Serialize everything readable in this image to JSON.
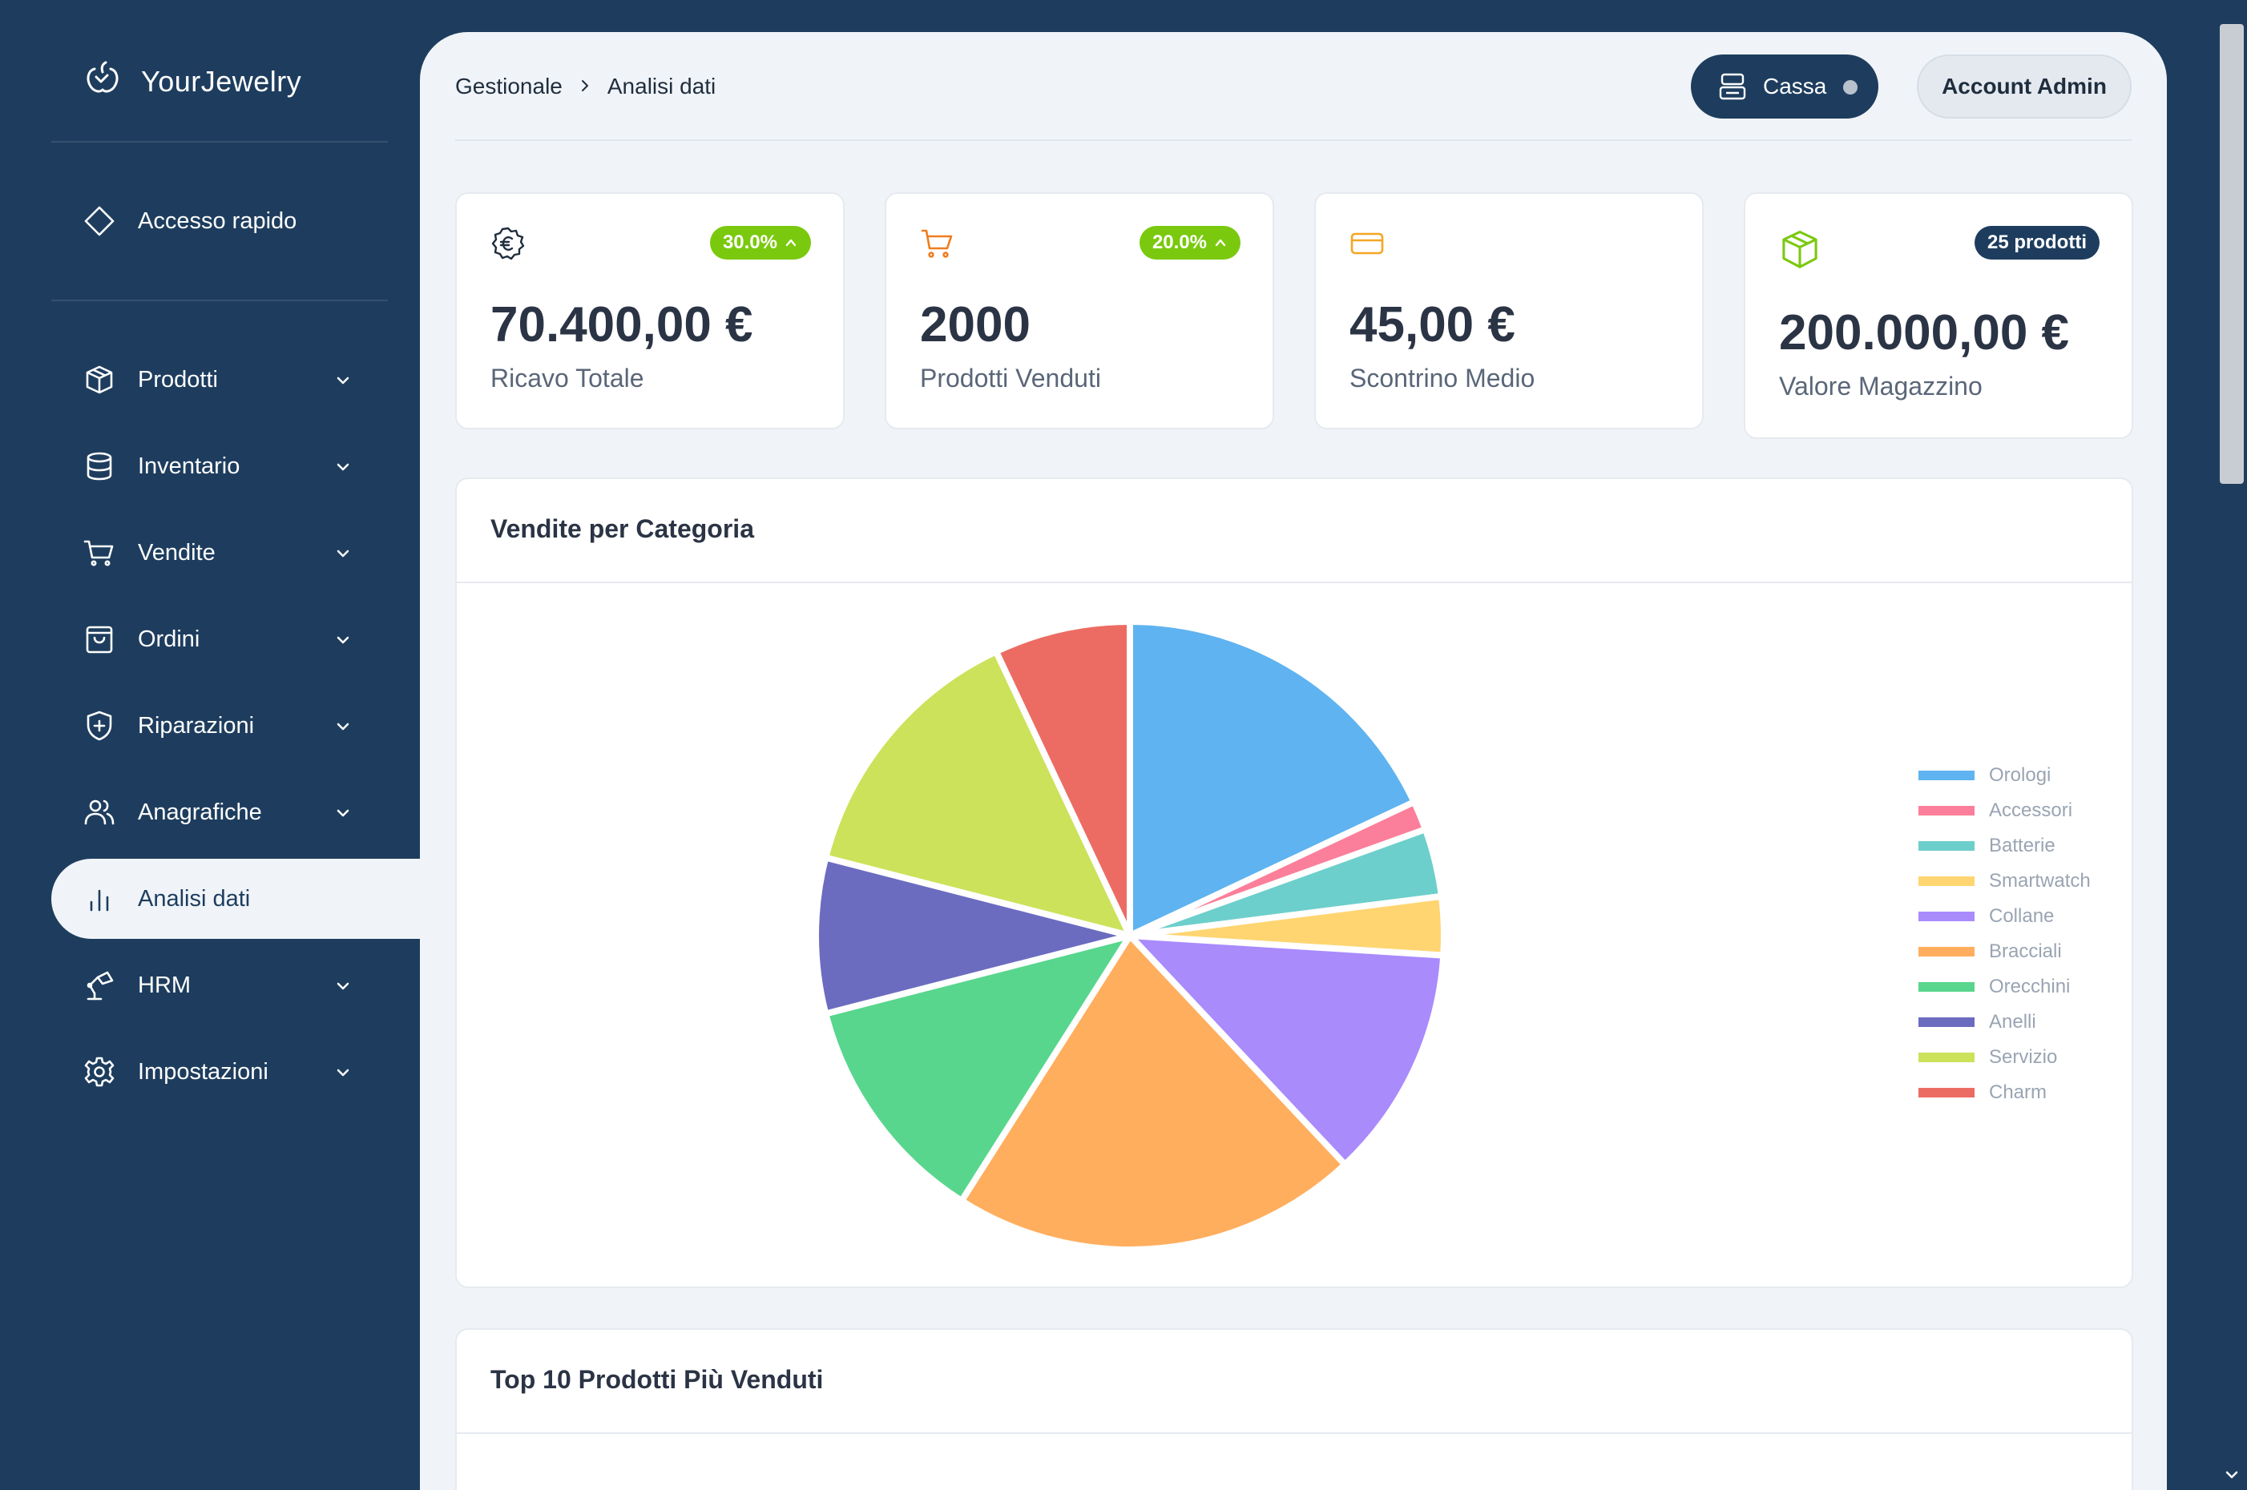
{
  "app": {
    "name": "YourJewelry"
  },
  "sidebar": {
    "quick_access": "Accesso rapido",
    "items": [
      {
        "label": "Prodotti",
        "icon": "package-icon",
        "has_submenu": true
      },
      {
        "label": "Inventario",
        "icon": "database-icon",
        "has_submenu": true
      },
      {
        "label": "Vendite",
        "icon": "cart-icon",
        "has_submenu": true
      },
      {
        "label": "Ordini",
        "icon": "bag-icon",
        "has_submenu": true
      },
      {
        "label": "Riparazioni",
        "icon": "shield-plus-icon",
        "has_submenu": true
      },
      {
        "label": "Anagrafiche",
        "icon": "users-icon",
        "has_submenu": true
      },
      {
        "label": "Analisi dati",
        "icon": "bar-chart-icon",
        "has_submenu": false,
        "active": true
      },
      {
        "label": "HRM",
        "icon": "desk-lamp-icon",
        "has_submenu": true
      },
      {
        "label": "Impostazioni",
        "icon": "gear-icon",
        "has_submenu": true
      }
    ]
  },
  "header": {
    "breadcrumb": [
      "Gestionale",
      "Analisi dati"
    ],
    "cassa_label": "Cassa",
    "account_label": "Account Admin"
  },
  "stats": [
    {
      "value": "70.400,00 €",
      "label": "Ricavo Totale",
      "badge": "30.0%",
      "icon": "euro-icon"
    },
    {
      "value": "2000",
      "label": "Prodotti Venduti",
      "badge": "20.0%",
      "icon": "cart-icon"
    },
    {
      "value": "45,00 €",
      "label": "Scontrino Medio",
      "badge": "",
      "icon": "credit-card-icon"
    },
    {
      "value": "200.000,00 €",
      "label": "Valore Magazzino",
      "badge": "25 prodotti",
      "icon": "box-icon"
    }
  ],
  "colors": {
    "sidebar": "#1e3d5e",
    "badge_green": "#7ac90e",
    "accent_orange": "#f07d1e"
  },
  "chart_section": {
    "title": "Vendite per Categoria"
  },
  "chart_data": {
    "type": "pie",
    "title": "",
    "legend_position": "right",
    "categories": [
      "Orologi",
      "Accessori",
      "Batterie",
      "Smartwatch",
      "Collane",
      "Bracciali",
      "Orecchini",
      "Anelli",
      "Servizio",
      "Charm"
    ],
    "values": [
      18,
      1.5,
      3.5,
      3,
      12,
      21,
      12,
      8,
      14,
      7
    ],
    "colors": [
      "#5fb3f0",
      "#fb7f9a",
      "#6dcfcb",
      "#ffd571",
      "#a98bfc",
      "#ffae5e",
      "#58d68d",
      "#6b6cc0",
      "#cbe25a",
      "#ec6c63"
    ]
  },
  "top_products_section": {
    "title": "Top 10 Prodotti Più Venduti"
  }
}
